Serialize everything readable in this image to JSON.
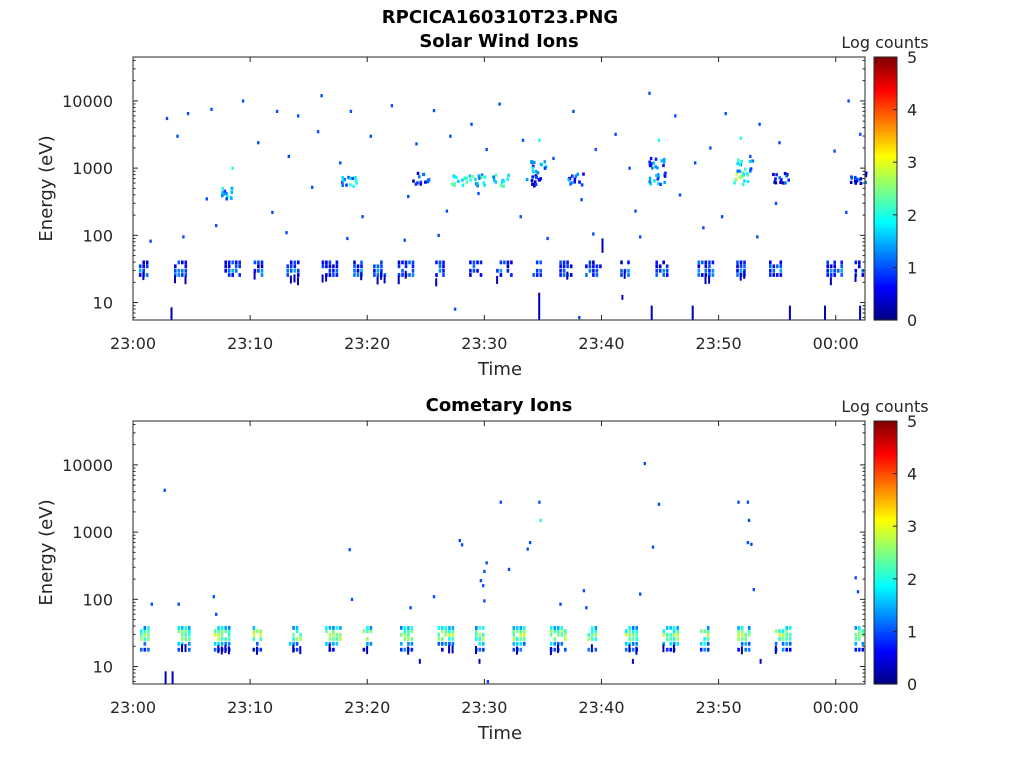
{
  "figure_title": "RPCICA160310T23.PNG",
  "chart_data": [
    {
      "type": "heatmap",
      "title": "Solar Wind Ions",
      "xlabel": "Time",
      "ylabel": "Energy (eV)",
      "x_ticks": [
        "23:00",
        "23:10",
        "23:20",
        "23:30",
        "23:40",
        "23:50",
        "00:00"
      ],
      "x_range_minutes": [
        0,
        62.5
      ],
      "y_scale": "log",
      "y_range_eV": [
        5.5,
        45000
      ],
      "y_ticks": [
        10,
        100,
        1000,
        10000
      ],
      "y_tick_labels": [
        "10",
        "100",
        "1000",
        "10000"
      ],
      "colorbar": {
        "label": "Log counts",
        "range": [
          0,
          5
        ],
        "ticks": [
          "0",
          "1",
          "2",
          "3",
          "4",
          "5"
        ],
        "colormap": "jet"
      },
      "sweep_blocks_min": [
        0.5,
        3.5,
        7.8,
        10.3,
        13.1,
        16.1,
        18.8,
        20.5,
        22.6,
        25.8,
        28.7,
        31.0,
        34.1,
        36.4,
        38.6,
        41.6,
        44.6,
        48.2,
        51.5,
        54.3,
        59.2,
        61.6
      ],
      "scatter": [
        {
          "t": 2.8,
          "e": 5500,
          "v": 1
        },
        {
          "t": 3.7,
          "e": 3000,
          "v": 1
        },
        {
          "t": 4.6,
          "e": 6500,
          "v": 1
        },
        {
          "t": 6.6,
          "e": 7500,
          "v": 1
        },
        {
          "t": 8.4,
          "e": 1000,
          "v": 2
        },
        {
          "t": 9.3,
          "e": 10000,
          "v": 1
        },
        {
          "t": 10.6,
          "e": 2400,
          "v": 1
        },
        {
          "t": 12.2,
          "e": 7000,
          "v": 1
        },
        {
          "t": 13.2,
          "e": 1500,
          "v": 1
        },
        {
          "t": 14.0,
          "e": 6000,
          "v": 1
        },
        {
          "t": 15.7,
          "e": 3500,
          "v": 1
        },
        {
          "t": 16.0,
          "e": 12000,
          "v": 1
        },
        {
          "t": 17.6,
          "e": 1200,
          "v": 1
        },
        {
          "t": 18.5,
          "e": 7000,
          "v": 1
        },
        {
          "t": 20.2,
          "e": 3000,
          "v": 1
        },
        {
          "t": 22.0,
          "e": 8500,
          "v": 1
        },
        {
          "t": 24.1,
          "e": 2300,
          "v": 1
        },
        {
          "t": 25.6,
          "e": 7200,
          "v": 1
        },
        {
          "t": 27.0,
          "e": 3000,
          "v": 1
        },
        {
          "t": 28.8,
          "e": 4500,
          "v": 1
        },
        {
          "t": 30.1,
          "e": 1900,
          "v": 1
        },
        {
          "t": 31.2,
          "e": 9000,
          "v": 1
        },
        {
          "t": 33.2,
          "e": 2600,
          "v": 1
        },
        {
          "t": 34.6,
          "e": 2600,
          "v": 2
        },
        {
          "t": 35.8,
          "e": 1400,
          "v": 1
        },
        {
          "t": 37.5,
          "e": 7000,
          "v": 1
        },
        {
          "t": 39.4,
          "e": 1900,
          "v": 1
        },
        {
          "t": 41.1,
          "e": 3200,
          "v": 1
        },
        {
          "t": 42.3,
          "e": 1000,
          "v": 1
        },
        {
          "t": 44.0,
          "e": 13000,
          "v": 1
        },
        {
          "t": 44.8,
          "e": 2600,
          "v": 2
        },
        {
          "t": 46.2,
          "e": 6000,
          "v": 1
        },
        {
          "t": 47.9,
          "e": 1200,
          "v": 1
        },
        {
          "t": 49.2,
          "e": 2000,
          "v": 1
        },
        {
          "t": 50.5,
          "e": 6500,
          "v": 1
        },
        {
          "t": 51.8,
          "e": 2800,
          "v": 2
        },
        {
          "t": 52.6,
          "e": 1500,
          "v": 1
        },
        {
          "t": 53.4,
          "e": 4500,
          "v": 1
        },
        {
          "t": 55.1,
          "e": 2400,
          "v": 1
        },
        {
          "t": 59.8,
          "e": 1800,
          "v": 1
        },
        {
          "t": 61.0,
          "e": 10000,
          "v": 1
        },
        {
          "t": 62.0,
          "e": 3200,
          "v": 1
        },
        {
          "t": 6.2,
          "e": 350,
          "v": 1
        },
        {
          "t": 11.8,
          "e": 220,
          "v": 1
        },
        {
          "t": 15.2,
          "e": 520,
          "v": 1
        },
        {
          "t": 19.5,
          "e": 190,
          "v": 1
        },
        {
          "t": 23.4,
          "e": 380,
          "v": 1
        },
        {
          "t": 26.7,
          "e": 230,
          "v": 1
        },
        {
          "t": 29.4,
          "e": 420,
          "v": 1
        },
        {
          "t": 33.0,
          "e": 190,
          "v": 1
        },
        {
          "t": 38.2,
          "e": 340,
          "v": 1
        },
        {
          "t": 42.8,
          "e": 230,
          "v": 1
        },
        {
          "t": 46.6,
          "e": 400,
          "v": 1
        },
        {
          "t": 50.2,
          "e": 190,
          "v": 1
        },
        {
          "t": 54.8,
          "e": 300,
          "v": 1
        },
        {
          "t": 60.8,
          "e": 220,
          "v": 1
        },
        {
          "t": 1.4,
          "e": 82,
          "v": 1
        },
        {
          "t": 4.2,
          "e": 95,
          "v": 1
        },
        {
          "t": 7.0,
          "e": 140,
          "v": 1
        },
        {
          "t": 13.0,
          "e": 110,
          "v": 1
        },
        {
          "t": 18.2,
          "e": 90,
          "v": 1
        },
        {
          "t": 23.1,
          "e": 85,
          "v": 1
        },
        {
          "t": 26.0,
          "e": 100,
          "v": 1
        },
        {
          "t": 35.3,
          "e": 90,
          "v": 1
        },
        {
          "t": 39.2,
          "e": 105,
          "v": 1
        },
        {
          "t": 43.2,
          "e": 95,
          "v": 1
        },
        {
          "t": 48.6,
          "e": 130,
          "v": 1
        },
        {
          "t": 53.2,
          "e": 95,
          "v": 1
        },
        {
          "t": 27.4,
          "e": 8,
          "v": 1
        },
        {
          "t": 38.0,
          "e": 6,
          "v": 1
        }
      ],
      "clusters": [
        {
          "t": 8.2,
          "e": 420,
          "v": 2.2
        },
        {
          "t": 18.4,
          "e": 660,
          "v": 2.0
        },
        {
          "t": 24.5,
          "e": 700,
          "v": 1.5
        },
        {
          "t": 27.8,
          "e": 680,
          "v": 2.7
        },
        {
          "t": 29.3,
          "e": 650,
          "v": 2.5
        },
        {
          "t": 31.3,
          "e": 650,
          "v": 2.5
        },
        {
          "t": 34.2,
          "e": 650,
          "v": 1.4
        },
        {
          "t": 34.6,
          "e": 1050,
          "v": 2.0
        },
        {
          "t": 37.7,
          "e": 680,
          "v": 1.8
        },
        {
          "t": 44.6,
          "e": 1200,
          "v": 2.0
        },
        {
          "t": 44.7,
          "e": 700,
          "v": 1.8
        },
        {
          "t": 51.8,
          "e": 700,
          "v": 2.8
        },
        {
          "t": 52.2,
          "e": 1100,
          "v": 2.2
        },
        {
          "t": 55.2,
          "e": 700,
          "v": 1.2
        },
        {
          "t": 61.8,
          "e": 700,
          "v": 1.5
        }
      ],
      "vstreaks": [
        {
          "t": 3.2,
          "e1": 5.5,
          "e2": 8.5
        },
        {
          "t": 34.6,
          "e1": 5.5,
          "e2": 14
        },
        {
          "t": 41.7,
          "e1": 11,
          "e2": 13
        },
        {
          "t": 44.2,
          "e1": 5.5,
          "e2": 9
        },
        {
          "t": 47.7,
          "e1": 5.5,
          "e2": 9
        },
        {
          "t": 56.0,
          "e1": 5.5,
          "e2": 9
        },
        {
          "t": 59.0,
          "e1": 5.5,
          "e2": 9
        },
        {
          "t": 62.0,
          "e1": 5.5,
          "e2": 9
        },
        {
          "t": 40.0,
          "e1": 55,
          "e2": 90
        }
      ]
    },
    {
      "type": "heatmap",
      "title": "Cometary Ions",
      "xlabel": "Time",
      "ylabel": "Energy (eV)",
      "x_ticks": [
        "23:00",
        "23:10",
        "23:20",
        "23:30",
        "23:40",
        "23:50",
        "00:00"
      ],
      "x_range_minutes": [
        0,
        62.5
      ],
      "y_scale": "log",
      "y_range_eV": [
        5.5,
        45000
      ],
      "y_ticks": [
        10,
        100,
        1000,
        10000
      ],
      "y_tick_labels": [
        "10",
        "100",
        "1000",
        "10000"
      ],
      "colorbar": {
        "label": "Log counts",
        "range": [
          0,
          5
        ],
        "ticks": [
          "0",
          "1",
          "2",
          "3",
          "4",
          "5"
        ],
        "colormap": "jet"
      },
      "sweep_blocks_min": [
        0.6,
        3.8,
        6.9,
        10.2,
        13.3,
        16.4,
        19.6,
        22.8,
        26.0,
        29.2,
        32.4,
        35.6,
        38.8,
        42.0,
        45.2,
        48.4,
        51.6,
        54.8,
        61.6
      ],
      "scatter": [
        {
          "t": 2.6,
          "e": 4200,
          "v": 1
        },
        {
          "t": 1.5,
          "e": 85,
          "v": 1
        },
        {
          "t": 3.8,
          "e": 85,
          "v": 1
        },
        {
          "t": 6.8,
          "e": 110,
          "v": 1
        },
        {
          "t": 7.0,
          "e": 60,
          "v": 1
        },
        {
          "t": 18.4,
          "e": 550,
          "v": 1
        },
        {
          "t": 18.6,
          "e": 100,
          "v": 1
        },
        {
          "t": 23.6,
          "e": 75,
          "v": 1
        },
        {
          "t": 25.6,
          "e": 110,
          "v": 1
        },
        {
          "t": 27.8,
          "e": 750,
          "v": 1
        },
        {
          "t": 28.0,
          "e": 650,
          "v": 1
        },
        {
          "t": 29.6,
          "e": 190,
          "v": 1
        },
        {
          "t": 29.9,
          "e": 260,
          "v": 1
        },
        {
          "t": 30.1,
          "e": 350,
          "v": 1
        },
        {
          "t": 29.8,
          "e": 160,
          "v": 1
        },
        {
          "t": 29.9,
          "e": 95,
          "v": 1
        },
        {
          "t": 31.3,
          "e": 2800,
          "v": 1
        },
        {
          "t": 32.0,
          "e": 280,
          "v": 1
        },
        {
          "t": 33.6,
          "e": 560,
          "v": 1
        },
        {
          "t": 33.8,
          "e": 700,
          "v": 1
        },
        {
          "t": 34.6,
          "e": 2800,
          "v": 1
        },
        {
          "t": 34.7,
          "e": 1500,
          "v": 2
        },
        {
          "t": 36.4,
          "e": 85,
          "v": 1
        },
        {
          "t": 38.4,
          "e": 135,
          "v": 1
        },
        {
          "t": 38.6,
          "e": 75,
          "v": 1
        },
        {
          "t": 43.2,
          "e": 120,
          "v": 1
        },
        {
          "t": 44.3,
          "e": 600,
          "v": 1
        },
        {
          "t": 44.8,
          "e": 2600,
          "v": 1
        },
        {
          "t": 51.6,
          "e": 2800,
          "v": 1
        },
        {
          "t": 52.4,
          "e": 2800,
          "v": 1
        },
        {
          "t": 52.5,
          "e": 1500,
          "v": 1
        },
        {
          "t": 52.4,
          "e": 700,
          "v": 1
        },
        {
          "t": 52.7,
          "e": 660,
          "v": 1
        },
        {
          "t": 52.9,
          "e": 140,
          "v": 1
        },
        {
          "t": 61.6,
          "e": 210,
          "v": 1
        },
        {
          "t": 61.8,
          "e": 130,
          "v": 1
        },
        {
          "t": 43.6,
          "e": 10500,
          "v": 1
        },
        {
          "t": 30.2,
          "e": 6,
          "v": 1
        }
      ],
      "clusters": [],
      "vstreaks": [
        {
          "t": 2.7,
          "e1": 5.5,
          "e2": 8.5
        },
        {
          "t": 3.3,
          "e1": 5.5,
          "e2": 8.5
        },
        {
          "t": 24.4,
          "e1": 11,
          "e2": 13
        },
        {
          "t": 29.5,
          "e1": 11,
          "e2": 13
        },
        {
          "t": 42.6,
          "e1": 11,
          "e2": 13
        },
        {
          "t": 53.5,
          "e1": 11,
          "e2": 13
        }
      ]
    }
  ]
}
